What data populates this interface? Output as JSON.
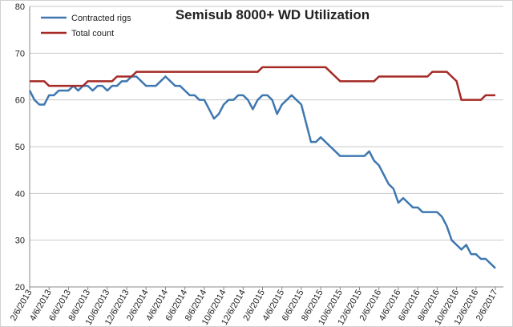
{
  "chart_data": {
    "type": "line",
    "title": "Semisub 8000+ WD Utilization",
    "categories": [
      "2/6/2013",
      null,
      null,
      null,
      "4/6/2013",
      null,
      null,
      null,
      "6/6/2013",
      null,
      null,
      null,
      "8/6/2013",
      null,
      null,
      null,
      "10/6/2013",
      null,
      null,
      null,
      "12/6/2013",
      null,
      null,
      null,
      "2/6/2014",
      null,
      null,
      null,
      "4/6/2014",
      null,
      null,
      null,
      "6/6/2014",
      null,
      null,
      null,
      "8/6/2014",
      null,
      null,
      null,
      "10/6/2014",
      null,
      null,
      null,
      "12/6/2014",
      null,
      null,
      null,
      "2/6/2015",
      null,
      null,
      null,
      "4/6/2015",
      null,
      null,
      null,
      "6/6/2015",
      null,
      null,
      null,
      "8/6/2015",
      null,
      null,
      null,
      "10/6/2015",
      null,
      null,
      null,
      "12/6/2015",
      null,
      null,
      null,
      "2/6/2016",
      null,
      null,
      null,
      "4/6/2016",
      null,
      null,
      null,
      "6/6/2016",
      null,
      null,
      null,
      "8/6/2016",
      null,
      null,
      null,
      "10/6/2016",
      null,
      null,
      null,
      "12/6/2016",
      null,
      null,
      null,
      "2/6/2017"
    ],
    "series": [
      {
        "name": "Contracted rigs",
        "color": "#3f77b0",
        "values": [
          62,
          60,
          59,
          59,
          61,
          61,
          62,
          62,
          62,
          63,
          62,
          63,
          63,
          62,
          63,
          63,
          62,
          63,
          63,
          64,
          64,
          65,
          65,
          64,
          63,
          63,
          63,
          64,
          65,
          64,
          63,
          63,
          62,
          61,
          61,
          60,
          60,
          58,
          56,
          57,
          59,
          60,
          60,
          61,
          61,
          60,
          58,
          60,
          61,
          61,
          60,
          57,
          59,
          60,
          61,
          60,
          59,
          55,
          51,
          51,
          52,
          51,
          50,
          49,
          48,
          48,
          48,
          48,
          48,
          48,
          49,
          47,
          46,
          44,
          42,
          41,
          38,
          39,
          38,
          37,
          37,
          36,
          36,
          36,
          36,
          35,
          33,
          30,
          29,
          28,
          29,
          27,
          27,
          26,
          26,
          25,
          24
        ]
      },
      {
        "name": "Total count",
        "color": "#a52a26",
        "values": [
          64,
          64,
          64,
          64,
          63,
          63,
          63,
          63,
          63,
          63,
          63,
          63,
          64,
          64,
          64,
          64,
          64,
          64,
          65,
          65,
          65,
          65,
          66,
          66,
          66,
          66,
          66,
          66,
          66,
          66,
          66,
          66,
          66,
          66,
          66,
          66,
          66,
          66,
          66,
          66,
          66,
          66,
          66,
          66,
          66,
          66,
          66,
          66,
          67,
          67,
          67,
          67,
          67,
          67,
          67,
          67,
          67,
          67,
          67,
          67,
          67,
          67,
          66,
          65,
          64,
          64,
          64,
          64,
          64,
          64,
          64,
          64,
          65,
          65,
          65,
          65,
          65,
          65,
          65,
          65,
          65,
          65,
          65,
          66,
          66,
          66,
          66,
          65,
          64,
          60,
          60,
          60,
          60,
          60,
          61,
          61,
          61
        ]
      }
    ],
    "ylim": [
      20,
      80
    ],
    "yticks": [
      20,
      30,
      40,
      50,
      60,
      70,
      80
    ],
    "grid": true,
    "legend": "upper left"
  }
}
